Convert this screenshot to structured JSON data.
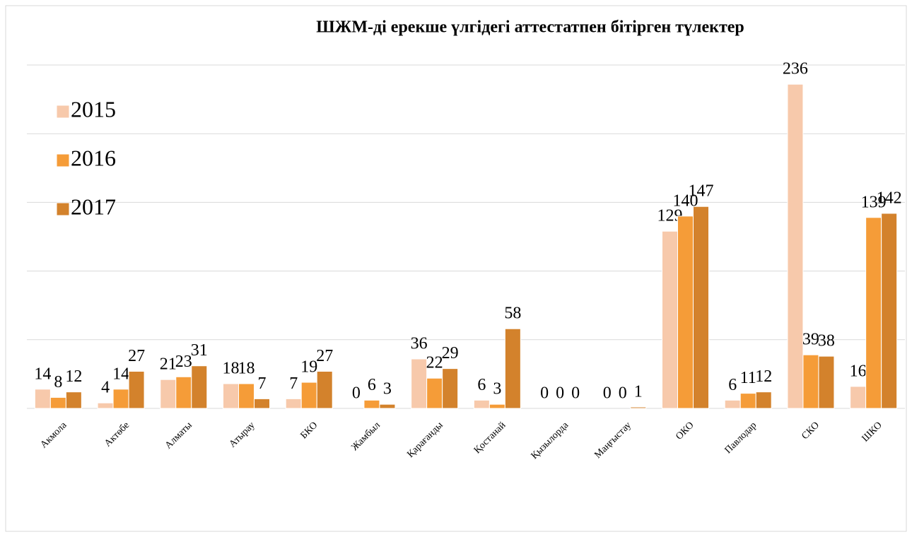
{
  "chart_data": {
    "type": "bar",
    "title": "ШЖМ-ді ерекше үлгідегі аттестатпен бітірген түлектер",
    "categories": [
      "Акмола",
      "Актөбе",
      "Алматы",
      "Атырау",
      "БКО",
      "Жамбыл",
      "Қарағанды",
      "Қостанай",
      "Қызылорда",
      "Маңғыстау",
      "ОКО",
      "Павлодар",
      "СКО",
      "ШКО"
    ],
    "series": [
      {
        "name": "2015",
        "color": "#f7c9ab",
        "values": [
          14,
          4,
          21,
          18,
          7,
          0,
          36,
          6,
          0,
          0,
          129,
          6,
          236,
          16
        ]
      },
      {
        "name": "2016",
        "color": "#f59c38",
        "values": [
          8,
          14,
          23,
          18,
          19,
          6,
          22,
          3,
          0,
          0,
          140,
          11,
          39,
          139
        ]
      },
      {
        "name": "2017",
        "color": "#d3822c",
        "values": [
          12,
          27,
          31,
          7,
          27,
          3,
          29,
          58,
          0,
          1,
          147,
          12,
          38,
          142
        ]
      }
    ],
    "ylim": [
      0,
      250
    ],
    "yticks": [
      0,
      50,
      100,
      150,
      200,
      250
    ],
    "grid": true,
    "legend": "left"
  }
}
